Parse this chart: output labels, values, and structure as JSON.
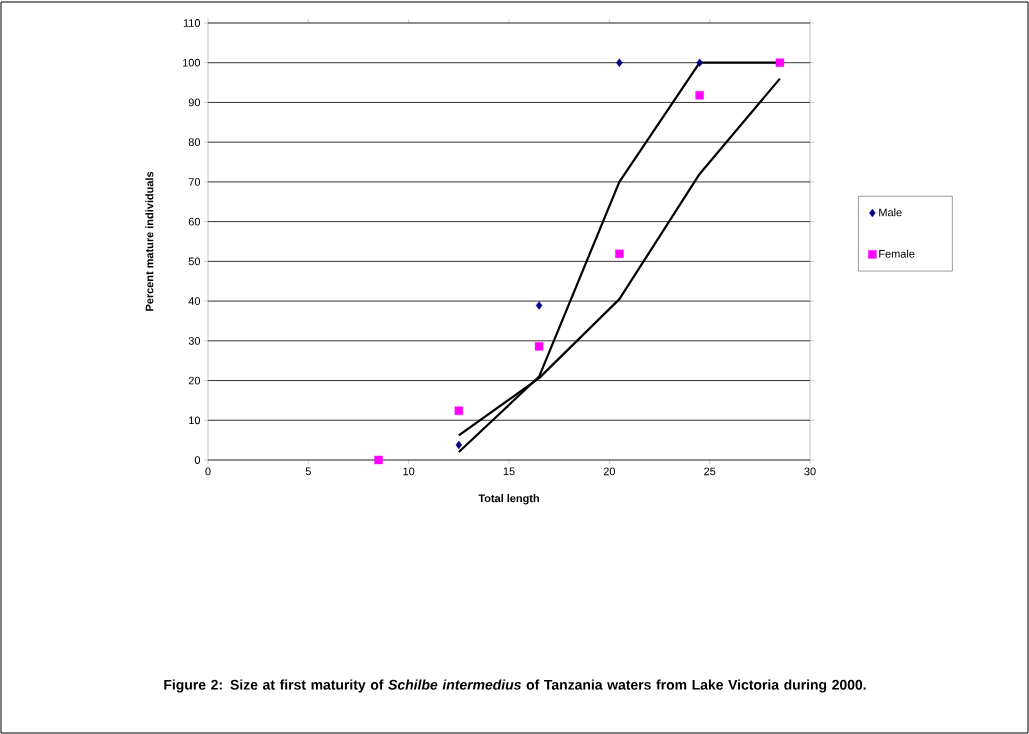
{
  "chart_data": {
    "type": "scatter",
    "xlabel": "Total length",
    "ylabel": "Percent mature individuals",
    "annotations": [
      "Figure 2: Size at first maturity of *Schilbe intermedius* of Tanzania waters from Lake Victoria during 2000."
    ],
    "xlim": [
      0,
      30
    ],
    "xticks": [
      0,
      5,
      10,
      15,
      20,
      25,
      30
    ],
    "ylim": [
      0,
      110
    ],
    "yticks": [
      0,
      10,
      20,
      30,
      40,
      50,
      60,
      70,
      80,
      90,
      100,
      110
    ],
    "grid": "y",
    "legend": "right",
    "series": [
      {
        "name": "Male",
        "color": "#000080",
        "marker": "diamond",
        "x": [
          12.5,
          16.5,
          20.5,
          24.5
        ],
        "values": [
          3.8,
          38.9,
          100,
          100
        ]
      },
      {
        "name": "Female",
        "color": "#ff00ff",
        "marker": "square",
        "x": [
          8.5,
          12.5,
          16.5,
          20.5,
          24.5,
          28.5
        ],
        "values": [
          0,
          12.4,
          28.6,
          51.9,
          91.8,
          100
        ]
      },
      {
        "type": "line",
        "color": "#000000",
        "marker": "none",
        "line_style": "solid",
        "x": [
          12.5,
          16.5,
          20.5,
          24.5,
          28.5
        ],
        "values": [
          2,
          21,
          70,
          100,
          100
        ]
      },
      {
        "type": "line",
        "color": "#000000",
        "marker": "none",
        "line_style": "solid",
        "x": [
          12.5,
          16.5,
          20.5,
          24.5,
          28.5
        ],
        "values": [
          6.2,
          20.6,
          40.5,
          72,
          96
        ]
      }
    ]
  }
}
